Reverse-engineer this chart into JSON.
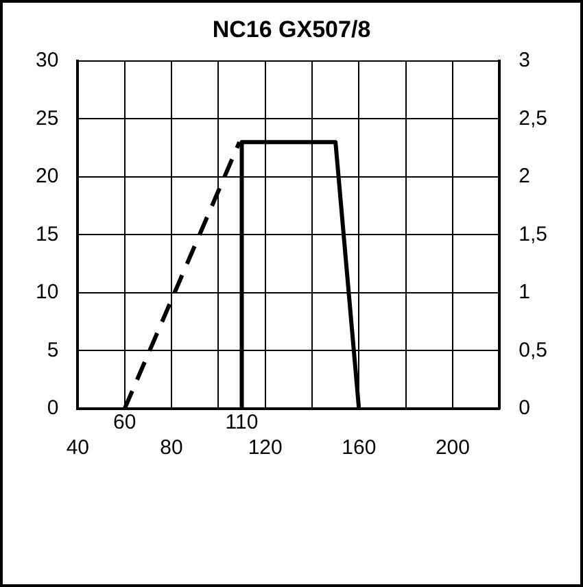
{
  "chart_data": {
    "type": "line",
    "title": "NC16 GX507/8",
    "xlim": [
      40,
      220
    ],
    "xticks": [
      40,
      {
        "value": 60,
        "label": null
      },
      80,
      {
        "value": 100,
        "label": null
      },
      120,
      {
        "value": 140,
        "label": null
      },
      160,
      {
        "value": 180,
        "label": null
      },
      200,
      {
        "value": 220,
        "label": null
      }
    ],
    "ylim": [
      0,
      30
    ],
    "yticks": [
      0,
      5,
      10,
      15,
      20,
      25,
      30
    ],
    "y2lim": [
      0,
      3
    ],
    "y2ticks": [
      0,
      {
        "value": 0.5,
        "label": "0,5"
      },
      1,
      {
        "value": 1.5,
        "label": "1,5"
      },
      2,
      {
        "value": 2.5,
        "label": "2,5"
      },
      3
    ],
    "grid": true,
    "marker": "none",
    "annotations": [
      {
        "text": "60",
        "x": 60,
        "y": 0
      },
      {
        "text": "110",
        "x": 110,
        "y": 0
      }
    ],
    "series": [
      {
        "color": "#000000",
        "line_style": "dashed",
        "x": [
          60,
          109
        ],
        "values": [
          0,
          23
        ]
      },
      {
        "color": "#000000",
        "line_style": "solid",
        "x": [
          110,
          110,
          150,
          160
        ],
        "values": [
          0,
          23,
          23,
          0
        ]
      }
    ]
  }
}
